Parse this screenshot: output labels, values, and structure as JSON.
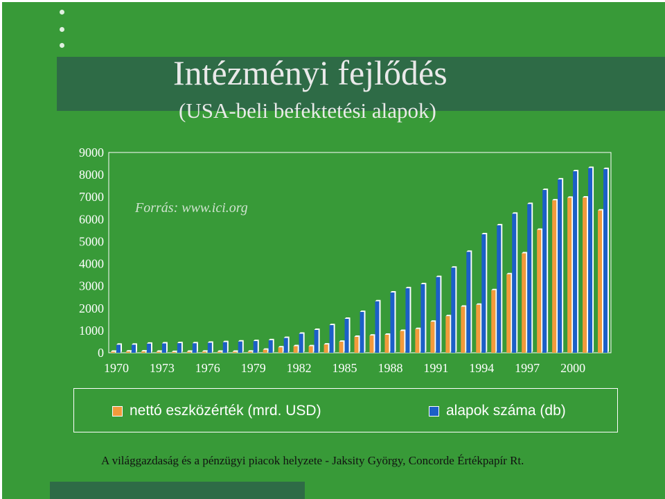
{
  "slide": {
    "title": "Intézményi fejlődés",
    "subtitle": "(USA-beli befektetési alapok)",
    "source": "Forrás: www.ici.org",
    "footer": "A világgazdaság és a pénzügyi piacok helyzete - Jaksity György, Concorde Értékpapír Rt.",
    "colors": {
      "background": "#389a38",
      "band": "#2e6b46"
    }
  },
  "chart_data": {
    "type": "bar",
    "categories": [
      1970,
      1971,
      1972,
      1973,
      1974,
      1975,
      1976,
      1977,
      1978,
      1979,
      1980,
      1981,
      1982,
      1983,
      1984,
      1985,
      1986,
      1987,
      1988,
      1989,
      1990,
      1991,
      1992,
      1993,
      1994,
      1995,
      1996,
      1997,
      1998,
      1999,
      2000,
      2001,
      2002
    ],
    "x_tick_labels": [
      "1970",
      "1973",
      "1976",
      "1979",
      "1982",
      "1985",
      "1988",
      "1991",
      "1994",
      "1997",
      "2000"
    ],
    "y_tick_labels": [
      "0",
      "1000",
      "2000",
      "3000",
      "4000",
      "5000",
      "6000",
      "7000",
      "8000",
      "9000"
    ],
    "ylim": [
      0,
      9000
    ],
    "grid": false,
    "legend_position": "bottom",
    "series": [
      {
        "name": "nettó eszközérték (mrd. USD)",
        "color": "#f39a3c",
        "values": [
          48,
          55,
          59,
          47,
          36,
          46,
          51,
          45,
          45,
          51,
          135,
          241,
          297,
          293,
          371,
          495,
          716,
          770,
          810,
          982,
          1067,
          1393,
          1642,
          2070,
          2155,
          2811,
          3526,
          4468,
          5525,
          6846,
          6965,
          6975,
          6390
        ]
      },
      {
        "name": "alapok száma (db)",
        "color": "#1c5fc8",
        "values": [
          361,
          361,
          410,
          421,
          431,
          426,
          452,
          477,
          505,
          524,
          564,
          665,
          857,
          1026,
          1241,
          1527,
          1835,
          2312,
          2708,
          2900,
          3079,
          3403,
          3824,
          4534,
          5325,
          5725,
          6248,
          6684,
          7314,
          7791,
          8155,
          8305,
          8256
        ]
      }
    ]
  }
}
